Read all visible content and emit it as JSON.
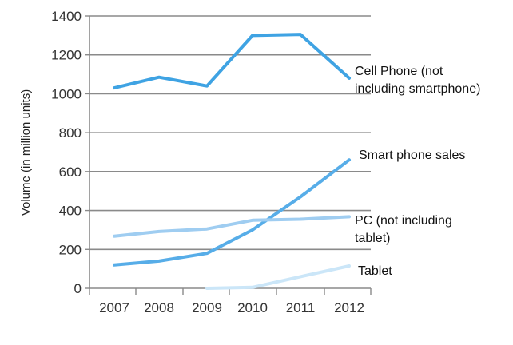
{
  "chart_data": {
    "type": "line",
    "title": "",
    "xlabel": "",
    "ylabel": "Volume (in million units)",
    "x": [
      "2007",
      "2008",
      "2009",
      "2010",
      "2011",
      "2012"
    ],
    "ylim": [
      0,
      1400
    ],
    "yticks": [
      0,
      200,
      400,
      600,
      800,
      1000,
      1200,
      1400
    ],
    "grid": true,
    "series": [
      {
        "name": "Cell Phone (not including smartphone)",
        "label_lines": [
          "Cell Phone (not",
          "including smartphone)"
        ],
        "color": "#3fa3e3",
        "values": [
          1030,
          1085,
          1040,
          1300,
          1305,
          1080
        ]
      },
      {
        "name": "Smart phone sales",
        "label_lines": [
          "Smart phone sales"
        ],
        "color": "#57ade8",
        "values": [
          120,
          140,
          180,
          300,
          470,
          660
        ]
      },
      {
        "name": "PC (not including tablet)",
        "label_lines": [
          "PC (not including",
          "tablet)"
        ],
        "color": "#9fcdf1",
        "values": [
          268,
          292,
          305,
          350,
          355,
          368
        ]
      },
      {
        "name": "Tablet",
        "label_lines": [
          "Tablet"
        ],
        "color": "#cbe6f8",
        "values": [
          null,
          null,
          0,
          5,
          60,
          115
        ]
      }
    ]
  }
}
